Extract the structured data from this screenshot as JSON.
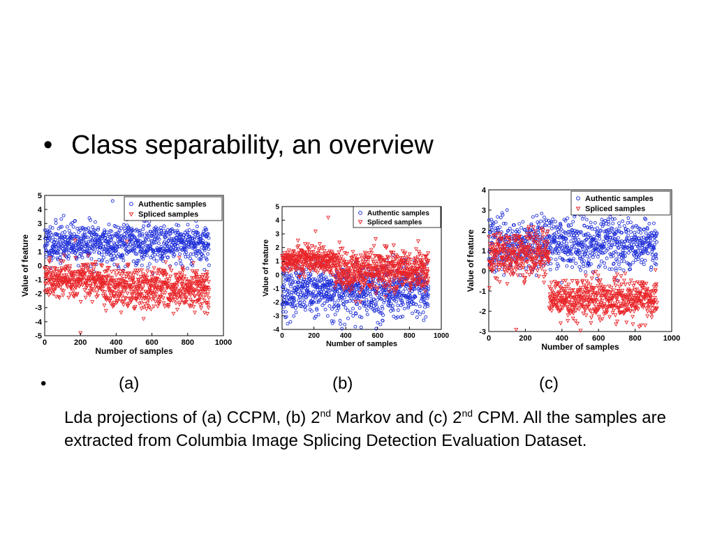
{
  "slide": {
    "title_bullet": "•",
    "title": "Class separability, an overview",
    "caption_bullet": "•",
    "labels": [
      "(a)",
      "(b)",
      "(c)"
    ],
    "caption_parts": [
      "Lda projections of (a) CCPM, (b) 2",
      "nd",
      " Markov and (c) 2",
      "nd",
      " CPM. All the samples are extracted from Columbia Image Splicing Detection Evaluation Dataset."
    ]
  },
  "colors": {
    "authentic": "#1f2fd8",
    "spliced": "#e8262a",
    "axis": "#000000"
  },
  "chart_data": [
    {
      "type": "scatter",
      "xlabel": "Number of samples",
      "ylabel": "Value of feature",
      "xlim": [
        0,
        1000
      ],
      "ylim": [
        -5,
        5
      ],
      "xticks": [
        0,
        200,
        400,
        600,
        800,
        1000
      ],
      "yticks": [
        5,
        4,
        3,
        2,
        1,
        0,
        -1,
        -2,
        -3,
        -4,
        -5
      ],
      "legend_placement": "top-right",
      "series": [
        {
          "name": "Authentic samples",
          "marker": "circle",
          "n": 900,
          "center": [
            1.6,
            1.6
          ],
          "spread": [
            0.9,
            0.9
          ],
          "outliers": [
            [
              380,
              4.6
            ]
          ]
        },
        {
          "name": "Spliced samples",
          "marker": "triangle-down",
          "n": 900,
          "center": [
            -1.6,
            -1.0
          ],
          "spread": [
            0.9,
            0.7
          ],
          "outliers": [
            [
              200,
              -4.8
            ],
            [
              170,
              1.8
            ]
          ]
        }
      ]
    },
    {
      "type": "scatter",
      "xlabel": "Number of samples",
      "ylabel": "Value of feature",
      "xlim": [
        0,
        1000
      ],
      "ylim": [
        -4,
        5
      ],
      "xticks": [
        0,
        200,
        400,
        600,
        800,
        1000
      ],
      "yticks": [
        5,
        4,
        3,
        2,
        1,
        0,
        -1,
        -2,
        -3,
        -4
      ],
      "legend_placement": "top-right",
      "series": [
        {
          "name": "Authentic samples",
          "marker": "circle",
          "n": 900,
          "center": [
            -1.2,
            -1.2
          ],
          "spread": [
            1.2,
            1.1
          ],
          "outliers": [
            [
              460,
              -3.8
            ]
          ]
        },
        {
          "name": "Spliced samples",
          "marker": "triangle-down",
          "n": 900,
          "center": [
            0.3,
            1.0
          ],
          "spread": [
            0.9,
            0.6
          ],
          "outliers": [
            [
              290,
              4.2
            ],
            [
              210,
              3.2
            ]
          ]
        }
      ]
    },
    {
      "type": "scatter",
      "xlabel": "Number of samples",
      "ylabel": "Value of feature",
      "xlim": [
        0,
        1000
      ],
      "ylim": [
        -3,
        4
      ],
      "xticks": [
        0,
        200,
        400,
        600,
        800,
        1000
      ],
      "yticks": [
        4,
        3,
        2,
        1,
        0,
        -1,
        -2,
        -3
      ],
      "legend_placement": "top-right",
      "series": [
        {
          "name": "Authentic samples",
          "marker": "circle",
          "n": 900,
          "center": [
            1.4,
            1.3
          ],
          "spread": [
            0.8,
            0.8
          ],
          "outliers": [
            [
              100,
              3.0
            ]
          ]
        },
        {
          "name": "Spliced samples",
          "marker": "triangle-down",
          "n": 900,
          "center": [
            -1.4,
            0.8
          ],
          "spread": [
            0.6,
            0.7
          ],
          "outliers": [
            [
              150,
              -2.9
            ]
          ]
        }
      ]
    }
  ]
}
